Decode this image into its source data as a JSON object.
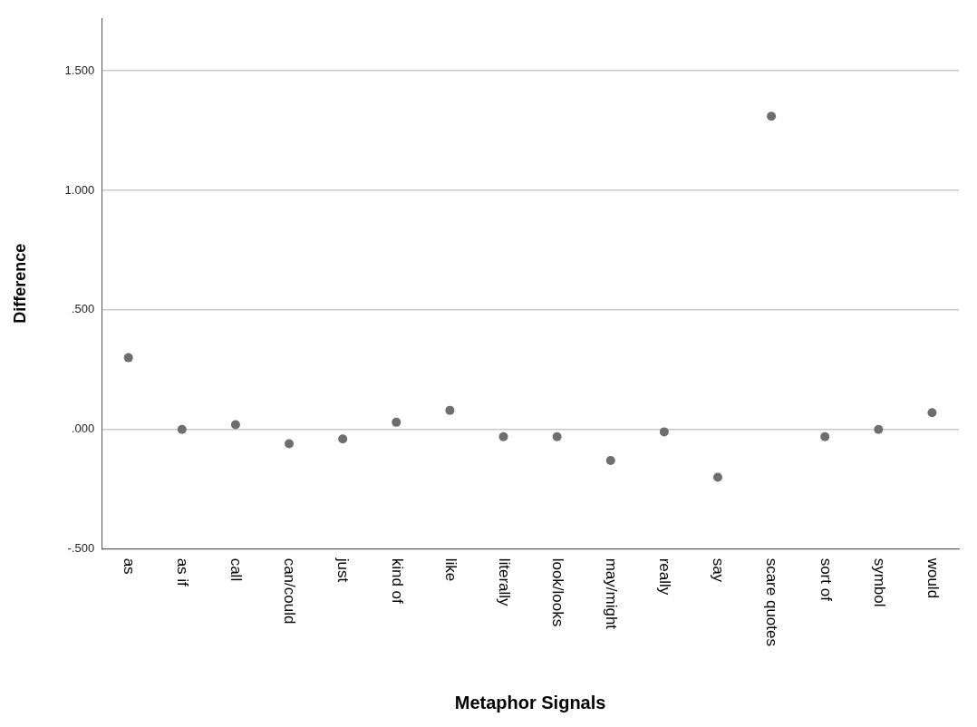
{
  "chart_data": {
    "type": "scatter",
    "xlabel": "Metaphor Signals",
    "ylabel": "Difference",
    "categories": [
      "as",
      "as if",
      "call",
      "can/could",
      "just",
      "kind of",
      "like",
      "literally",
      "look/looks",
      "may/might",
      "really",
      "say",
      "scare quotes",
      "sort of",
      "symbol",
      "would"
    ],
    "series": [
      {
        "color": "#6e6e6e",
        "values": [
          0.3,
          0.0,
          0.02,
          -0.06,
          -0.04,
          0.03,
          0.08,
          -0.03,
          -0.03,
          -0.13,
          -0.01,
          -0.2,
          1.31,
          -0.03,
          0.0,
          0.07
        ]
      }
    ],
    "ylim": [
      -0.5,
      1.72
    ],
    "yticks": [
      {
        "value": -0.5,
        "label": "-.500"
      },
      {
        "value": 0,
        "label": ".000"
      },
      {
        "value": 0.5,
        "label": ".500"
      },
      {
        "value": 1,
        "label": "1.000"
      },
      {
        "value": 1.5,
        "label": "1.500"
      }
    ],
    "grid": "y",
    "marker": "circle",
    "legend": false
  }
}
